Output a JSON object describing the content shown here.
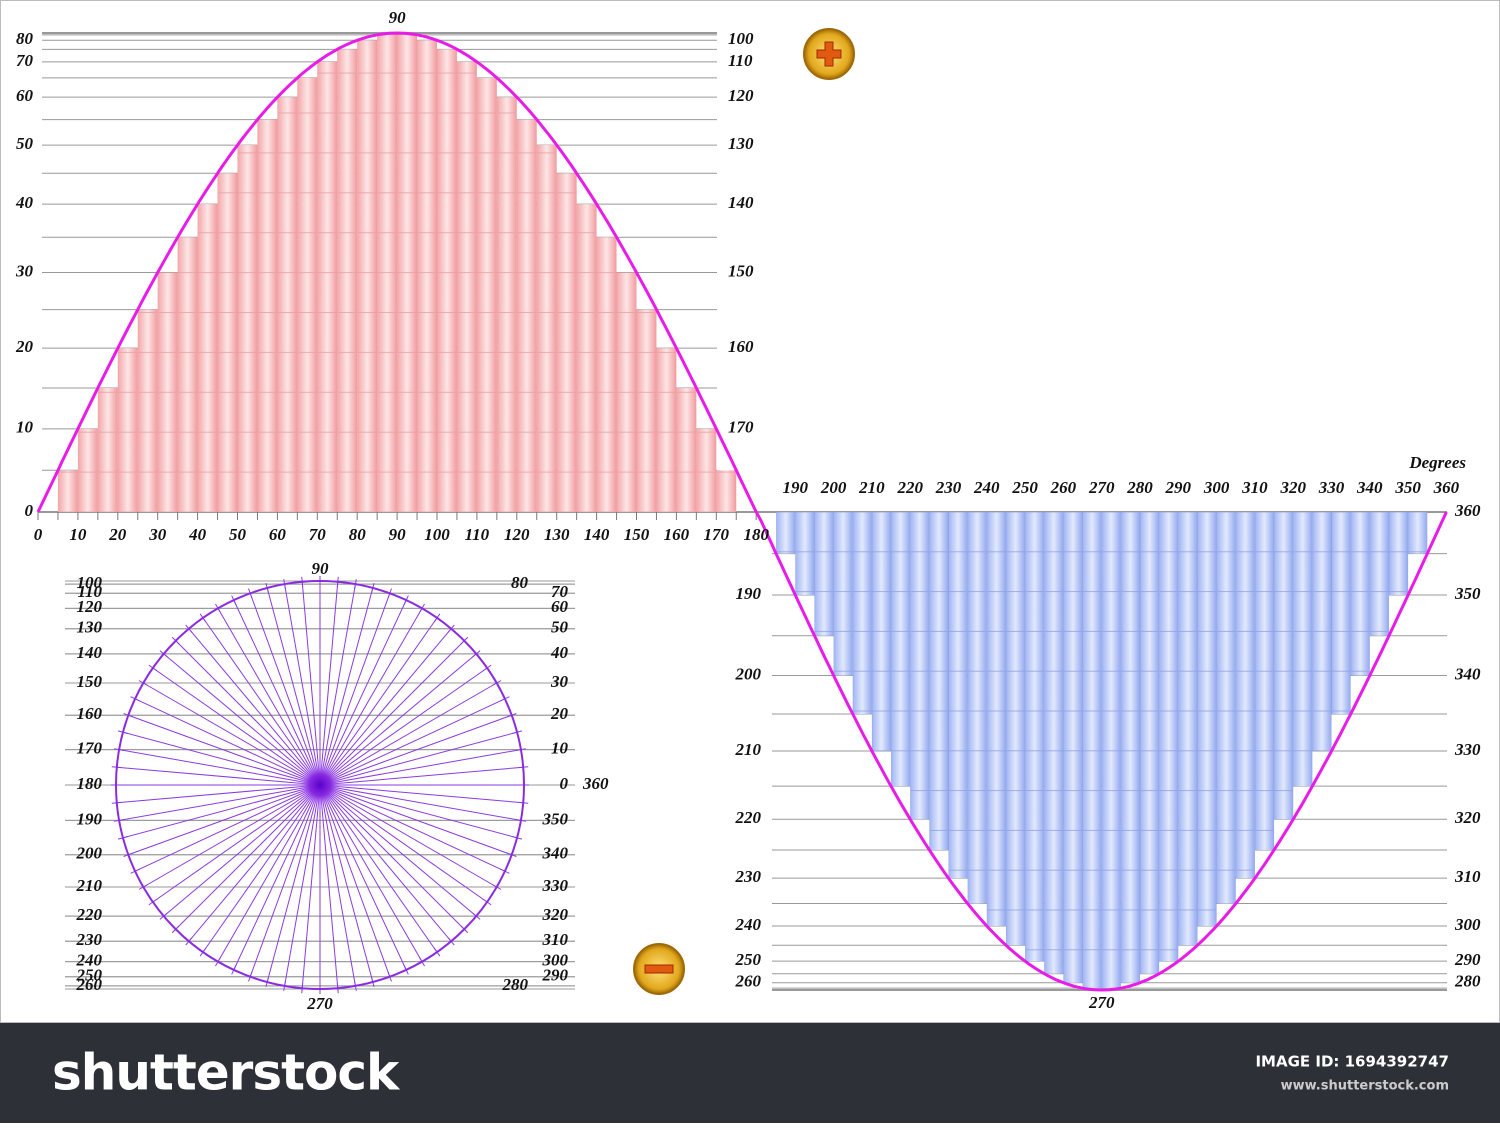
{
  "top_chart": {
    "peak_label": 90,
    "left_labels": [
      0,
      10,
      20,
      30,
      40,
      50,
      60,
      70,
      80
    ],
    "right_labels": [
      100,
      110,
      120,
      130,
      140,
      150,
      160,
      170
    ],
    "x_labels": [
      0,
      10,
      20,
      30,
      40,
      50,
      60,
      70,
      80,
      90,
      100,
      110,
      120,
      130,
      140,
      150,
      160,
      170,
      180
    ]
  },
  "bottom_chart": {
    "title": "Degrees",
    "top_labels": [
      190,
      200,
      210,
      220,
      230,
      240,
      250,
      260,
      270,
      280,
      290,
      300,
      310,
      320,
      330,
      340,
      350,
      360
    ],
    "left_labels": [
      190,
      200,
      210,
      220,
      230,
      240,
      250,
      260
    ],
    "right_labels": [
      280,
      290,
      300,
      310,
      320,
      330,
      340,
      350,
      360
    ],
    "trough_label": 270
  },
  "circle": {
    "top_label": 90,
    "bottom_label": 270,
    "left_labels": [
      100,
      110,
      120,
      130,
      140,
      150,
      160,
      170,
      180,
      190,
      200,
      210,
      220,
      230,
      240,
      250,
      260
    ],
    "right_labels": [
      80,
      70,
      60,
      50,
      40,
      30,
      20,
      10,
      0,
      350,
      340,
      330,
      320,
      310,
      300,
      290,
      280
    ],
    "extra_label": 360
  },
  "footer": {
    "logo": "shutterstock",
    "image_id": "IMAGE ID: 1694392747",
    "url": "www.shutterstock.com"
  }
}
